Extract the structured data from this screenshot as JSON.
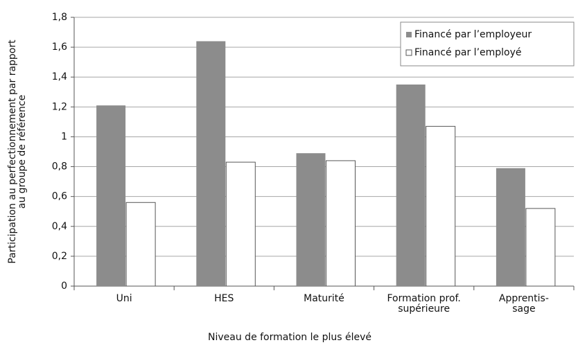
{
  "chart_data": {
    "type": "bar",
    "ylabel": "Participation au perfectionnement par rapport\nau groupe de référence",
    "xlabel": "Niveau de formation le plus élevé",
    "categories": [
      "Uni",
      "HES",
      "Maturité",
      "Formation prof.\nsupérieure",
      "Apprentis-\nsage"
    ],
    "series": [
      {
        "name": "Financé par l’employeur",
        "color": "#8c8c8c",
        "values": [
          1.21,
          1.64,
          0.89,
          1.35,
          0.79
        ]
      },
      {
        "name": "Financé par l’employé",
        "color": "#ffffff",
        "values": [
          0.56,
          0.83,
          0.84,
          1.07,
          0.52
        ]
      }
    ],
    "ylim": [
      0,
      1.8
    ],
    "yticks": [
      0,
      {
        "value": 0.2,
        "label": "0,2"
      },
      {
        "value": 0.4,
        "label": "0,4"
      },
      {
        "value": 0.6,
        "label": "0,6"
      },
      {
        "value": 0.8,
        "label": "0,8"
      },
      1,
      {
        "value": 1.2,
        "label": "1,2"
      },
      {
        "value": 1.4,
        "label": "1,4"
      },
      {
        "value": 1.6,
        "label": "1,6"
      },
      {
        "value": 1.8,
        "label": "1,8"
      }
    ],
    "grid": true,
    "legend": "upper right"
  }
}
